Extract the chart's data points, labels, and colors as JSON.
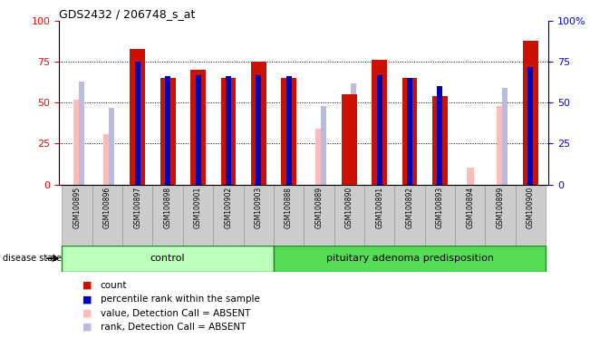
{
  "title": "GDS2432 / 206748_s_at",
  "samples": [
    "GSM100895",
    "GSM100896",
    "GSM100897",
    "GSM100898",
    "GSM100901",
    "GSM100902",
    "GSM100903",
    "GSM100888",
    "GSM100889",
    "GSM100890",
    "GSM100891",
    "GSM100892",
    "GSM100893",
    "GSM100894",
    "GSM100899",
    "GSM100900"
  ],
  "count": [
    0,
    0,
    83,
    65,
    70,
    65,
    75,
    65,
    0,
    55,
    76,
    65,
    54,
    0,
    0,
    88
  ],
  "percentile_rank": [
    0,
    0,
    75,
    66,
    67,
    66,
    67,
    66,
    0,
    0,
    67,
    65,
    60,
    0,
    0,
    72
  ],
  "value_absent": [
    52,
    31,
    0,
    0,
    0,
    0,
    0,
    0,
    34,
    0,
    0,
    0,
    0,
    10,
    48,
    0
  ],
  "rank_absent": [
    63,
    47,
    0,
    0,
    0,
    0,
    0,
    0,
    48,
    62,
    0,
    0,
    0,
    0,
    59,
    0
  ],
  "control_count": 7,
  "disease_count": 9,
  "color_count": "#cc1100",
  "color_percentile": "#0000bb",
  "color_value_absent": "#ffbbbb",
  "color_rank_absent": "#bbbbdd",
  "color_control_bg": "#bbffbb",
  "color_disease_bg": "#55dd55",
  "color_xticklabel_bg": "#cccccc",
  "ylim": [
    0,
    100
  ],
  "main_bar_width": 0.5,
  "thin_bar_width": 0.18,
  "percentile_bar_width": 0.18
}
